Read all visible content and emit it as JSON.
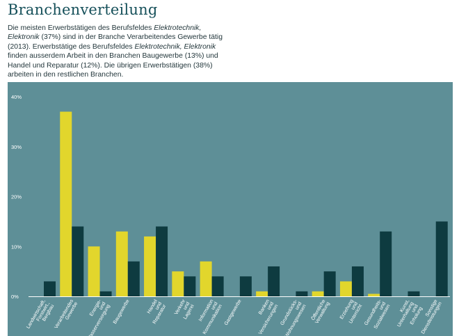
{
  "page": {
    "title": "Branchenverteilung",
    "intro": {
      "p1": "Die meisten Erwerbstätigen des Berufsfeldes ",
      "field_a": "Elektrotechnik, Elektronik",
      "p2": " (37%) sind in der Branche Verarbeitendes Gewerbe tätig (2013). Erwerbstätige des Berufsfeldes ",
      "field_b": "Elektrotechnik, Elektronik",
      "p3": " finden ausserdem Arbeit in den Branchen Baugewerbe (13%) und Handel und Reparatur (12%). Die übrigen Erwerbstätigen (38%) arbeiten in den restlichen Branchen."
    }
  },
  "chart_data": {
    "type": "bar",
    "title": "",
    "xlabel": "",
    "ylabel": "",
    "ylim": [
      0,
      40
    ],
    "yticks": [
      "0%",
      "10%",
      "20%",
      "30%",
      "40%"
    ],
    "grid": false,
    "categories": [
      "Landwirtschaft, Forstwirt., Bergbau",
      "Verarbeitendes Gewerbe",
      "Energie- und Wasserversorgung",
      "Baugewerbe",
      "Handel und Reparatur",
      "Verkehr und Lagerei",
      "Information und Kommunikation",
      "Gastgewerbe",
      "Banken und Versicherungen",
      "Grundstücks- und Wohnungswesen",
      "Öffentliche Verwaltung",
      "Erziehung und Unterricht",
      "Gesundheits- und Sozialwesen",
      "Kunst, Unterhaltung und Erholung",
      "Sonstige Dienstleistungen"
    ],
    "series": [
      {
        "color": "#e2d62c",
        "values": [
          0,
          37,
          10,
          13,
          12,
          5,
          7,
          0,
          1,
          0,
          1,
          3,
          0.5,
          0,
          0
        ]
      },
      {
        "color": "#0e3b40",
        "values": [
          3,
          14,
          1,
          7,
          14,
          4,
          4,
          4,
          6,
          1,
          5,
          6,
          13,
          1,
          15
        ]
      }
    ]
  }
}
